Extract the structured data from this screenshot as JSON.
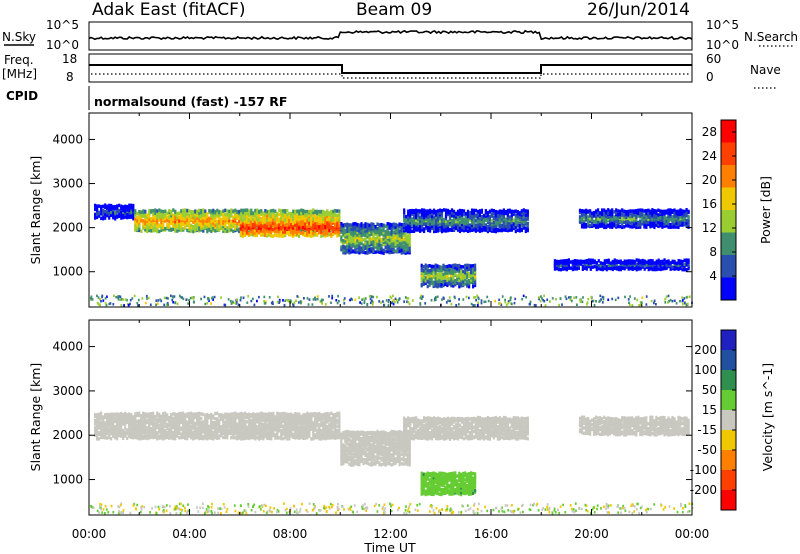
{
  "header": {
    "station": "Adak East (fitACF)",
    "beam": "Beam 09",
    "date": "26/Jun/2014"
  },
  "top_panels": {
    "nsky_label": "N.Sky",
    "nsearch_label": "N.Search",
    "noise_tick_hi": "10^5",
    "noise_tick_lo": "10^0",
    "freq_label_line1": "Freq.",
    "freq_label_line2": "[MHz]",
    "freq_tick_hi": "18",
    "freq_tick_lo": "8",
    "nave_label": "Nave",
    "nave_tick_hi": "60",
    "nave_tick_lo": "0",
    "cpid_label": "CPID",
    "cpid_text": "normalsound (fast) -157 RF"
  },
  "chart_data": [
    {
      "type": "heatmap",
      "panel": "power",
      "ylabel": "Slant Range [km]",
      "ylim": [
        200,
        4600
      ],
      "yticks": [
        1000,
        2000,
        3000,
        4000
      ],
      "xlabel": "",
      "xlim": [
        "00:00",
        "24:00"
      ],
      "colorbar_label": "Power [dB]",
      "colorbar_ticks": [
        4,
        8,
        12,
        16,
        20,
        24,
        28
      ],
      "colorbar_range": [
        0,
        30
      ],
      "colors": [
        "#0000ff",
        "#2a4faf",
        "#3f8f6f",
        "#9acd32",
        "#f0c800",
        "#ff8000",
        "#ff4000",
        "#ff0000"
      ],
      "features": [
        {
          "t_start": 0.2,
          "t_end": 1.8,
          "range_center": 2350,
          "range_width": 150,
          "level": 6
        },
        {
          "t_start": 1.8,
          "t_end": 10.0,
          "range_center": 2150,
          "range_width": 220,
          "level": 20
        },
        {
          "t_start": 6.0,
          "t_end": 10.0,
          "range_center": 2000,
          "range_width": 180,
          "level": 26
        },
        {
          "t_start": 10.0,
          "t_end": 12.8,
          "range_center": 1750,
          "range_width": 300,
          "level": 14
        },
        {
          "t_start": 12.5,
          "t_end": 17.5,
          "range_center": 2150,
          "range_width": 240,
          "level": 10
        },
        {
          "t_start": 13.2,
          "t_end": 15.4,
          "range_center": 900,
          "range_width": 220,
          "level": 14
        },
        {
          "t_start": 18.5,
          "t_end": 23.9,
          "range_center": 1150,
          "range_width": 80,
          "level": 6
        },
        {
          "t_start": 19.5,
          "t_end": 23.9,
          "range_center": 2200,
          "range_width": 180,
          "level": 10
        }
      ]
    },
    {
      "type": "heatmap",
      "panel": "velocity",
      "ylabel": "Slant Range [km]",
      "ylim": [
        200,
        4600
      ],
      "yticks": [
        1000,
        2000,
        3000,
        4000
      ],
      "xlabel": "Time UT",
      "xlim": [
        "00:00",
        "24:00"
      ],
      "xticks": [
        "00:00",
        "04:00",
        "08:00",
        "12:00",
        "16:00",
        "20:00",
        "00:00"
      ],
      "colorbar_label": "Velocity [m s^-1]",
      "colorbar_ticks": [
        200,
        100,
        50,
        15,
        -15,
        -50,
        -100,
        -200
      ],
      "colors": [
        "#2020c0",
        "#2050a0",
        "#2f8f4f",
        "#66cc33",
        "#c8c8c0",
        "#f0c800",
        "#ff8000",
        "#ff4000",
        "#ff0000"
      ],
      "features": [
        {
          "t_start": 0.2,
          "t_end": 10.0,
          "range_center": 2200,
          "range_width": 250,
          "vel": 0
        },
        {
          "t_start": 10.0,
          "t_end": 12.8,
          "range_center": 1700,
          "range_width": 350,
          "vel": 0
        },
        {
          "t_start": 12.5,
          "t_end": 17.5,
          "range_center": 2150,
          "range_width": 240,
          "vel": 0
        },
        {
          "t_start": 13.2,
          "t_end": 15.4,
          "range_center": 900,
          "range_width": 220,
          "vel": 40
        },
        {
          "t_start": 19.5,
          "t_end": 23.9,
          "range_center": 2200,
          "range_width": 180,
          "vel": 0
        }
      ]
    }
  ]
}
